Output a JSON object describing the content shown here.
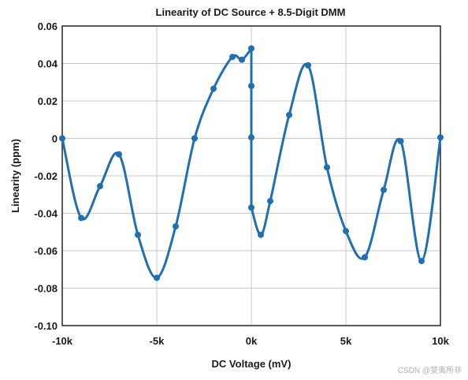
{
  "chart_data": {
    "type": "line",
    "title": "Linearity of DC Source + 8.5-Digit DMM",
    "xlabel": "DC Voltage (mV)",
    "ylabel": "Linearity (ppm)",
    "xlim": [
      -10000,
      10000
    ],
    "ylim": [
      -0.1,
      0.06
    ],
    "x_ticks": [
      -10000,
      -5000,
      0,
      5000,
      10000
    ],
    "x_tick_labels": [
      "-10k",
      "-5k",
      "0k",
      "5k",
      "10k"
    ],
    "y_ticks": [
      0.06,
      0.04,
      0.02,
      0,
      -0.02,
      -0.04,
      -0.06,
      -0.08,
      -0.1
    ],
    "y_tick_labels": [
      "0.06",
      "0.04",
      "0.02",
      "0",
      "-0.02",
      "-0.04",
      "-0.06",
      "-0.08",
      "-0.10"
    ],
    "grid": true,
    "color": "#1f6fb2",
    "series": [
      {
        "segments": [
          [
            {
              "x": -10000,
              "y": 0.0
            },
            {
              "x": -9000,
              "y": -0.0425
            },
            {
              "x": -8000,
              "y": -0.0255
            },
            {
              "x": -7000,
              "y": -0.0085
            },
            {
              "x": -6000,
              "y": -0.0515
            },
            {
              "x": -5000,
              "y": -0.0745
            },
            {
              "x": -4000,
              "y": -0.047
            },
            {
              "x": -3000,
              "y": 0.0
            },
            {
              "x": -2000,
              "y": 0.0265
            },
            {
              "x": -1000,
              "y": 0.0435
            },
            {
              "x": -500,
              "y": 0.042
            },
            {
              "x": 0,
              "y": 0.048
            }
          ],
          [
            {
              "x": 0,
              "y": 0.048
            },
            {
              "x": 0,
              "y": 0.028
            },
            {
              "x": 0,
              "y": 0.0005
            },
            {
              "x": 0,
              "y": -0.037
            }
          ],
          [
            {
              "x": 0,
              "y": -0.037
            },
            {
              "x": 500,
              "y": -0.0515
            },
            {
              "x": 1000,
              "y": -0.0335
            },
            {
              "x": 2000,
              "y": 0.0125
            },
            {
              "x": 3000,
              "y": 0.039
            },
            {
              "x": 4000,
              "y": -0.0155
            },
            {
              "x": 5000,
              "y": -0.0495
            },
            {
              "x": 6000,
              "y": -0.0635
            },
            {
              "x": 7000,
              "y": -0.0275
            },
            {
              "x": 7900,
              "y": -0.0015
            },
            {
              "x": 9000,
              "y": -0.0655
            },
            {
              "x": 10000,
              "y": 0.0005
            }
          ]
        ]
      }
    ]
  },
  "watermark": "CSDN @斐夷所非"
}
